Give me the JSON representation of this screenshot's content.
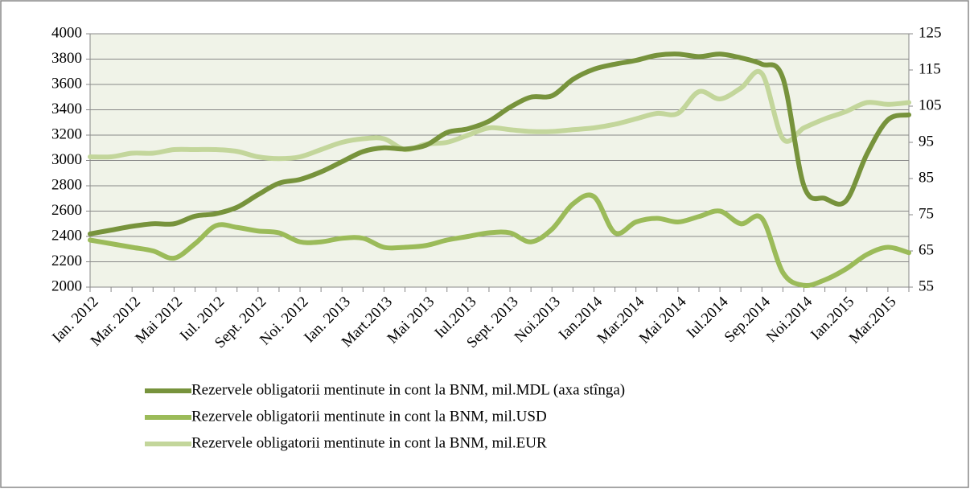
{
  "chart_data": {
    "type": "line",
    "categories": [
      "Ian. 2012",
      null,
      "Mar. 2012",
      null,
      "Mai 2012",
      null,
      "Iul. 2012",
      null,
      "Sept. 2012",
      null,
      "Noi. 2012",
      null,
      "Ian. 2013",
      null,
      "Mart.2013",
      null,
      "Mai 2013",
      null,
      "Iul.2013",
      null,
      "Sept. 2013",
      null,
      "Noi.2013",
      null,
      "Ian.2014",
      null,
      "Mar.2014",
      null,
      "Mai 2014",
      null,
      "Iul.2014",
      null,
      "Sep.2014",
      null,
      "Noi.2014",
      null,
      "Ian.2015",
      null,
      "Mar.2015",
      null
    ],
    "series": [
      {
        "name": "Rezervele obligatorii mentinute in cont la BNM, mil.MDL (axa stînga)",
        "color": "#77933c",
        "axis": "y",
        "values": [
          2420,
          2450,
          2480,
          2500,
          2500,
          2560,
          2580,
          2630,
          2730,
          2820,
          2850,
          2910,
          2990,
          3070,
          3100,
          3090,
          3120,
          3220,
          3250,
          3310,
          3420,
          3500,
          3510,
          3640,
          3720,
          3760,
          3790,
          3830,
          3840,
          3820,
          3840,
          3810,
          3760,
          3650,
          2800,
          2700,
          2680,
          3050,
          3320,
          3360
        ]
      },
      {
        "name": "Rezervele obligatorii mentinute in cont la BNM, mil.USD",
        "color": "#9bbb59",
        "axis": "y2",
        "values": [
          68,
          67,
          66,
          65,
          63,
          67,
          72,
          71.5,
          70.5,
          70,
          67.5,
          67.5,
          68.5,
          68.5,
          66,
          66,
          66.5,
          68,
          69,
          70,
          70,
          67.5,
          71,
          78,
          80,
          70,
          73,
          74,
          73,
          74.5,
          76,
          72.5,
          74,
          59,
          55.5,
          57,
          60,
          64,
          66,
          64.5
        ]
      },
      {
        "name": "Rezervele obligatorii mentinute in cont la BNM, mil.EUR",
        "color": "#c3d69b",
        "axis": "y2",
        "values": [
          91,
          91,
          92,
          92,
          93,
          93,
          93,
          92.5,
          91,
          90.5,
          91,
          93,
          95,
          96,
          96,
          93,
          94.5,
          95,
          97,
          99,
          98.5,
          98,
          98,
          98.5,
          99,
          100,
          101.5,
          103,
          103,
          109,
          107,
          110,
          114,
          96,
          99,
          101.5,
          103.5,
          106,
          105.5,
          106
        ]
      }
    ],
    "ylim": [
      2000,
      4000
    ],
    "yticks": [
      2000,
      2200,
      2400,
      2600,
      2800,
      3000,
      3200,
      3400,
      3600,
      3800,
      4000
    ],
    "y2lim": [
      55,
      125
    ],
    "y2ticks": [
      55,
      65,
      75,
      85,
      95,
      105,
      115,
      125
    ],
    "grid": true,
    "legend": "bottom"
  }
}
